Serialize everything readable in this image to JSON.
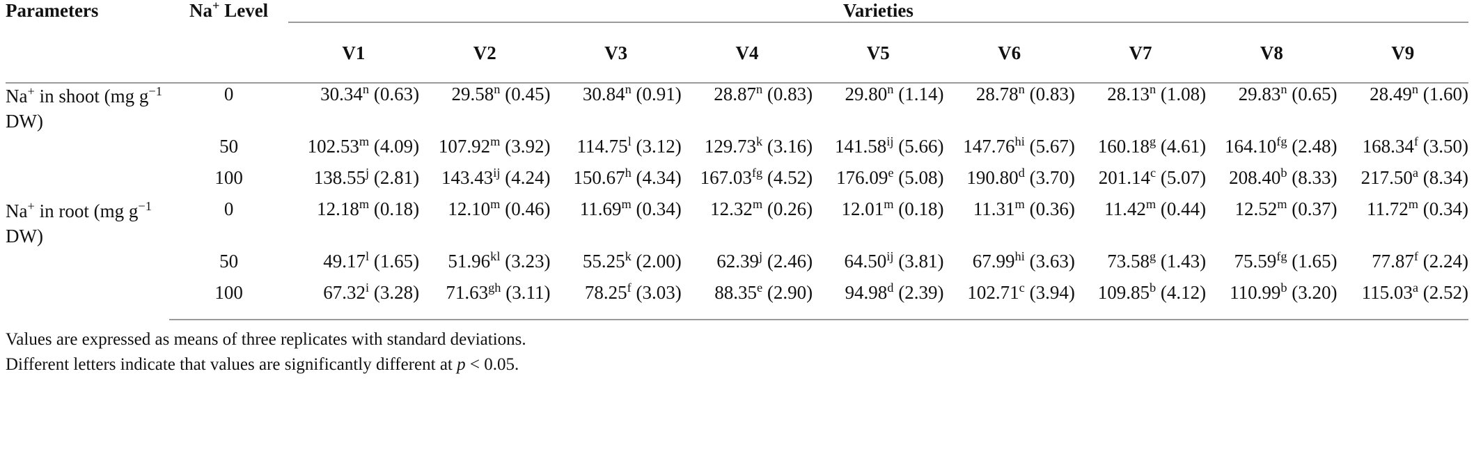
{
  "table": {
    "headers": {
      "parameters": "Parameters",
      "na_prefix": "Na",
      "na_sup": "+",
      "na_suffix": " Level",
      "varieties": "Varieties",
      "variety_cols": [
        "V1",
        "V2",
        "V3",
        "V4",
        "V5",
        "V6",
        "V7",
        "V8",
        "V9"
      ]
    },
    "groups": [
      {
        "parameter": [
          {
            "t": "Na"
          },
          {
            "sup": "+"
          },
          {
            "t": " in shoot (mg g"
          },
          {
            "sup": "−1"
          },
          {
            "t": " DW)"
          }
        ],
        "rows": [
          {
            "level": "0",
            "cells": [
              [
                "30.34",
                "n",
                "0.63"
              ],
              [
                "29.58",
                "n",
                "0.45"
              ],
              [
                "30.84",
                "n",
                "0.91"
              ],
              [
                "28.87",
                "n",
                "0.83"
              ],
              [
                "29.80",
                "n",
                "1.14"
              ],
              [
                "28.78",
                "n",
                "0.83"
              ],
              [
                "28.13",
                "n",
                "1.08"
              ],
              [
                "29.83",
                "n",
                "0.65"
              ],
              [
                "28.49",
                "n",
                "1.60"
              ]
            ]
          },
          {
            "level": "50",
            "cells": [
              [
                "102.53",
                "m",
                "4.09"
              ],
              [
                "107.92",
                "m",
                "3.92"
              ],
              [
                "114.75",
                "l",
                "3.12"
              ],
              [
                "129.73",
                "k",
                "3.16"
              ],
              [
                "141.58",
                "ij",
                "5.66"
              ],
              [
                "147.76",
                "hi",
                "5.67"
              ],
              [
                "160.18",
                "g",
                "4.61"
              ],
              [
                "164.10",
                "fg",
                "2.48"
              ],
              [
                "168.34",
                "f",
                "3.50"
              ]
            ]
          },
          {
            "level": "100",
            "cells": [
              [
                "138.55",
                "j",
                "2.81"
              ],
              [
                "143.43",
                "ij",
                "4.24"
              ],
              [
                "150.67",
                "h",
                "4.34"
              ],
              [
                "167.03",
                "fg",
                "4.52"
              ],
              [
                "176.09",
                "e",
                "5.08"
              ],
              [
                "190.80",
                "d",
                "3.70"
              ],
              [
                "201.14",
                "c",
                "5.07"
              ],
              [
                "208.40",
                "b",
                "8.33"
              ],
              [
                "217.50",
                "a",
                "8.34"
              ]
            ]
          }
        ]
      },
      {
        "parameter": [
          {
            "t": "Na"
          },
          {
            "sup": "+"
          },
          {
            "t": " in root (mg g"
          },
          {
            "sup": "−1"
          },
          {
            "t": " DW)"
          }
        ],
        "rows": [
          {
            "level": "0",
            "cells": [
              [
                "12.18",
                "m",
                "0.18"
              ],
              [
                "12.10",
                "m",
                "0.46"
              ],
              [
                "11.69",
                "m",
                "0.34"
              ],
              [
                "12.32",
                "m",
                "0.26"
              ],
              [
                "12.01",
                "m",
                "0.18"
              ],
              [
                "11.31",
                "m",
                "0.36"
              ],
              [
                "11.42",
                "m",
                "0.44"
              ],
              [
                "12.52",
                "m",
                "0.37"
              ],
              [
                "11.72",
                "m",
                "0.34"
              ]
            ]
          },
          {
            "level": "50",
            "cells": [
              [
                "49.17",
                "l",
                "1.65"
              ],
              [
                "51.96",
                "kl",
                "3.23"
              ],
              [
                "55.25",
                "k",
                "2.00"
              ],
              [
                "62.39",
                "j",
                "2.46"
              ],
              [
                "64.50",
                "ij",
                "3.81"
              ],
              [
                "67.99",
                "hi",
                "3.63"
              ],
              [
                "73.58",
                "g",
                "1.43"
              ],
              [
                "75.59",
                "fg",
                "1.65"
              ],
              [
                "77.87",
                "f",
                "2.24"
              ]
            ]
          },
          {
            "level": "100",
            "cells": [
              [
                "67.32",
                "i",
                "3.28"
              ],
              [
                "71.63",
                "gh",
                "3.11"
              ],
              [
                "78.25",
                "f",
                "3.03"
              ],
              [
                "88.35",
                "e",
                "2.90"
              ],
              [
                "94.98",
                "d",
                "2.39"
              ],
              [
                "102.71",
                "c",
                "3.94"
              ],
              [
                "109.85",
                "b",
                "4.12"
              ],
              [
                "110.99",
                "b",
                "3.20"
              ],
              [
                "115.03",
                "a",
                "2.52"
              ]
            ]
          }
        ]
      }
    ]
  },
  "footnotes": [
    [
      {
        "t": "Values are expressed as means of three replicates with standard deviations."
      }
    ],
    [
      {
        "t": "Different letters indicate that values are significantly different at "
      },
      {
        "i": "p"
      },
      {
        "t": " < 0.05."
      }
    ]
  ]
}
